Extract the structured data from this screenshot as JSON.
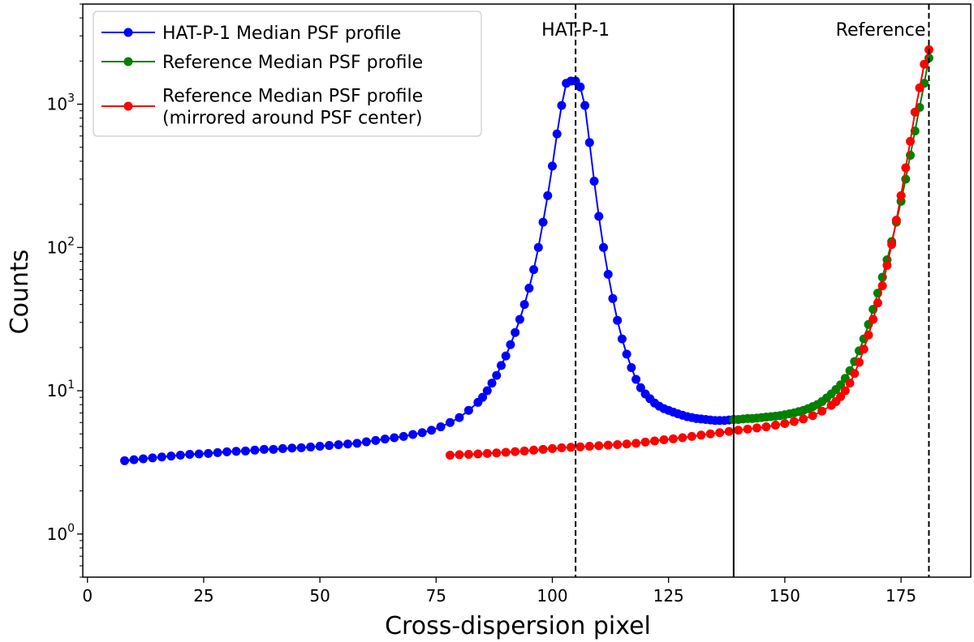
{
  "chart_data": {
    "type": "line",
    "title": "",
    "xlabel": "Cross-dispersion pixel",
    "ylabel": "Counts",
    "yscale": "log",
    "xlim": [
      -1,
      190
    ],
    "ylim": [
      0.5,
      5000
    ],
    "xticks": [
      0,
      25,
      50,
      75,
      100,
      125,
      150,
      175
    ],
    "yticks": [
      {
        "value": 1,
        "base": "10",
        "exp": "0"
      },
      {
        "value": 10,
        "base": "10",
        "exp": "1"
      },
      {
        "value": 100,
        "base": "10",
        "exp": "2"
      },
      {
        "value": 1000,
        "base": "10",
        "exp": "3"
      }
    ],
    "vlines": [
      {
        "x": 105,
        "style": "dashed",
        "label": "HAT-P-1"
      },
      {
        "x": 139,
        "style": "solid",
        "label": ""
      },
      {
        "x": 181,
        "style": "dashed",
        "label": "Reference"
      }
    ],
    "legend_position": "top-left",
    "series": [
      {
        "name": "HAT-P-1 Median PSF profile",
        "color": "#0000ff",
        "x": [
          8,
          10,
          12,
          14,
          16,
          18,
          20,
          22,
          24,
          26,
          28,
          30,
          32,
          34,
          36,
          38,
          40,
          42,
          44,
          46,
          48,
          50,
          52,
          54,
          56,
          58,
          60,
          62,
          64,
          66,
          68,
          70,
          72,
          74,
          76,
          78,
          80,
          82,
          84,
          85,
          86,
          87,
          88,
          89,
          90,
          91,
          92,
          93,
          94,
          95,
          96,
          97,
          98,
          99,
          100,
          101,
          102,
          103,
          104,
          105,
          106,
          107,
          108,
          109,
          110,
          111,
          112,
          113,
          114,
          115,
          116,
          117,
          118,
          119,
          120,
          121,
          122,
          123,
          124,
          125,
          126,
          127,
          128,
          129,
          130,
          131,
          132,
          133,
          134,
          135,
          136,
          137,
          138,
          139
        ],
        "values": [
          3.25,
          3.3,
          3.35,
          3.4,
          3.45,
          3.5,
          3.55,
          3.6,
          3.62,
          3.65,
          3.7,
          3.75,
          3.78,
          3.8,
          3.85,
          3.9,
          3.9,
          3.95,
          3.98,
          4.0,
          4.05,
          4.1,
          4.15,
          4.2,
          4.25,
          4.3,
          4.4,
          4.5,
          4.6,
          4.7,
          4.8,
          4.95,
          5.1,
          5.3,
          5.6,
          6.0,
          6.5,
          7.3,
          8.3,
          9.0,
          10.0,
          11.3,
          12.8,
          15.0,
          17.5,
          21.0,
          25.5,
          31.5,
          40.0,
          52.0,
          70.0,
          100.0,
          150.0,
          230.0,
          370.0,
          620.0,
          980.0,
          1400.0,
          1450.0,
          1450.0,
          1320.0,
          980.0,
          540.0,
          290.0,
          165.0,
          100.0,
          65.0,
          44.0,
          31.0,
          23.0,
          18.0,
          14.5,
          12.0,
          10.5,
          9.5,
          8.8,
          8.2,
          7.8,
          7.5,
          7.3,
          7.1,
          6.9,
          6.75,
          6.6,
          6.5,
          6.4,
          6.35,
          6.3,
          6.25,
          6.2,
          6.2,
          6.2,
          6.25,
          6.3
        ]
      },
      {
        "name": "Reference Median PSF profile",
        "color": "#008000",
        "x": [
          139,
          140,
          141,
          142,
          143,
          144,
          145,
          146,
          147,
          148,
          149,
          150,
          151,
          152,
          153,
          154,
          155,
          156,
          157,
          158,
          159,
          160,
          161,
          162,
          163,
          164,
          165,
          166,
          167,
          168,
          169,
          170,
          171,
          172,
          173,
          174,
          175,
          176,
          177,
          178,
          179,
          180,
          181
        ],
        "values": [
          6.3,
          6.3,
          6.35,
          6.4,
          6.4,
          6.45,
          6.5,
          6.55,
          6.6,
          6.65,
          6.7,
          6.8,
          6.9,
          7.0,
          7.15,
          7.3,
          7.5,
          7.75,
          8.0,
          8.4,
          8.9,
          9.5,
          10.2,
          11.0,
          12.2,
          13.8,
          16.0,
          19.0,
          23.0,
          29.0,
          37.0,
          48.0,
          62.0,
          82.0,
          110.0,
          150.0,
          210.0,
          300.0,
          440.0,
          650.0,
          950.0,
          1400.0,
          2100.0
        ]
      },
      {
        "name": "Reference Median PSF profile\n(mirrored around PSF center)",
        "legend_lines": [
          "Reference Median PSF profile",
          "(mirrored around PSF center)"
        ],
        "color": "#ff0000",
        "x": [
          78,
          80,
          82,
          84,
          86,
          88,
          90,
          92,
          94,
          96,
          98,
          100,
          102,
          104,
          106,
          108,
          110,
          112,
          114,
          116,
          118,
          120,
          122,
          124,
          126,
          128,
          130,
          132,
          134,
          136,
          138,
          140,
          142,
          144,
          146,
          148,
          150,
          152,
          154,
          156,
          158,
          160,
          161,
          162,
          163,
          164,
          165,
          166,
          167,
          168,
          169,
          170,
          171,
          172,
          173,
          174,
          175,
          176,
          177,
          178,
          179,
          180,
          181
        ],
        "values": [
          3.55,
          3.58,
          3.6,
          3.62,
          3.65,
          3.68,
          3.72,
          3.76,
          3.8,
          3.85,
          3.9,
          3.95,
          4.0,
          4.03,
          4.06,
          4.1,
          4.13,
          4.17,
          4.21,
          4.25,
          4.3,
          4.38,
          4.46,
          4.55,
          4.62,
          4.7,
          4.8,
          4.9,
          5.0,
          5.1,
          5.2,
          5.3,
          5.4,
          5.5,
          5.6,
          5.75,
          5.9,
          6.1,
          6.35,
          6.7,
          7.2,
          7.9,
          8.4,
          9.1,
          10.0,
          11.3,
          13.2,
          15.8,
          19.5,
          24.5,
          31.5,
          41.0,
          54.0,
          75.0,
          105.0,
          155.0,
          230.0,
          360.0,
          550.0,
          880.0,
          1300.0,
          1900.0,
          2400.0
        ]
      }
    ]
  }
}
